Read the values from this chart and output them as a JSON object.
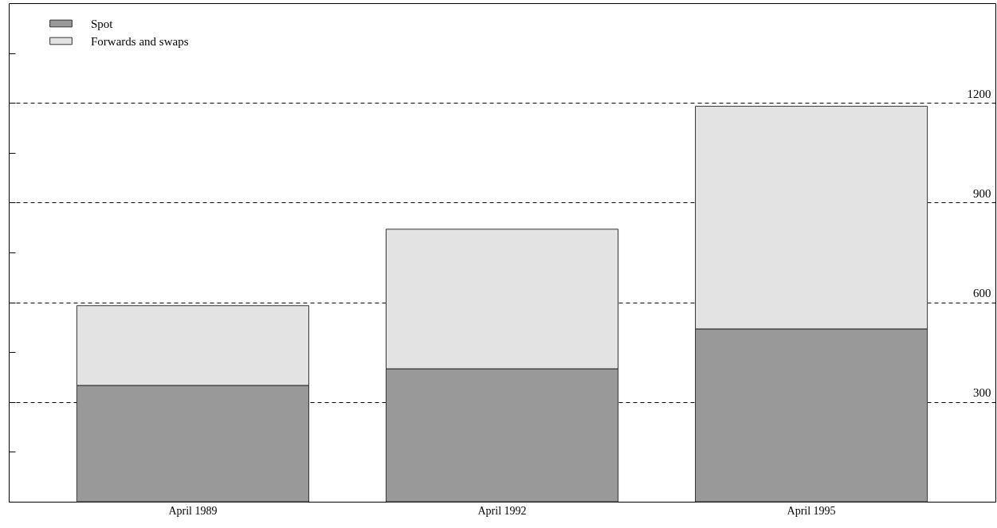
{
  "chart_data": {
    "type": "bar",
    "stacked": true,
    "categories": [
      "April 1989",
      "April 1992",
      "April 1995"
    ],
    "series": [
      {
        "name": "Spot",
        "color": "#999999",
        "values": [
          350,
          400,
          520
        ]
      },
      {
        "name": "Forwards and swaps",
        "color": "#e3e3e3",
        "values": [
          240,
          420,
          670
        ]
      }
    ],
    "ylim": [
      0,
      1500
    ],
    "yticks": [
      {
        "value": 150,
        "label": null
      },
      300,
      {
        "value": 450,
        "label": null
      },
      600,
      {
        "value": 750,
        "label": null
      },
      900,
      {
        "value": 1050,
        "label": null
      },
      1200,
      {
        "value": 1350,
        "label": null
      }
    ],
    "grid": "y",
    "line_style": "dashed",
    "legend": "top left"
  }
}
